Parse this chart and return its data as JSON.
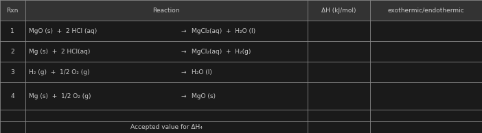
{
  "title_row": [
    "Rxn",
    "Reaction",
    "ΔH (kJ/mol)",
    "exothermic/endothermic"
  ],
  "rows": [
    {
      "num": "1",
      "reactants": "MgO (s)  +  2 HCl (aq)",
      "products": "MgCl₂(aq)  +  H₂O (l)"
    },
    {
      "num": "2",
      "reactants": "Mg (s)  +  2 HCl(aq)",
      "products": "MgCl₂(aq)  +  H₂(g)"
    },
    {
      "num": "3",
      "reactants": "H₂ (g)  +  1/2 O₂ (g)",
      "products": "H₂O (l)"
    },
    {
      "num": "4",
      "reactants": "Mg (s)  +  1/2 O₂ (g)",
      "products": "MgO (s)"
    }
  ],
  "bottom_label": "Accepted value for ΔH₄",
  "arrow": "→",
  "bg_color": "#1a1a1a",
  "border_color": "#888888",
  "text_color": "#cccccc",
  "header_bg": "#333333",
  "font_size": 6.5,
  "fig_width": 7.02,
  "fig_height": 1.94,
  "dpi": 100,
  "c0": 0.0,
  "c1": 0.052,
  "c2": 0.638,
  "c3": 0.768,
  "c4": 1.0,
  "row_tops": [
    1.0,
    0.845,
    0.69,
    0.535,
    0.38,
    0.175,
    0.09
  ],
  "row_bots": [
    0.845,
    0.69,
    0.535,
    0.38,
    0.175,
    0.09,
    0.0
  ]
}
